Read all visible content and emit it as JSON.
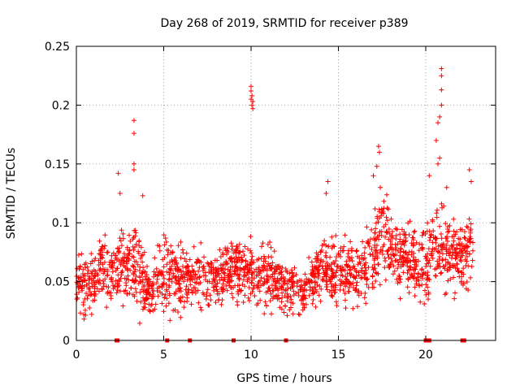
{
  "chart_data": {
    "type": "scatter",
    "title": "Day 268 of 2019, SRMTID for receiver p389",
    "xlabel": "GPS time / hours",
    "ylabel": "SRMTID / TECUs",
    "xlim": [
      0,
      24
    ],
    "ylim": [
      0,
      0.25
    ],
    "xticks": [
      0,
      5,
      10,
      15,
      20
    ],
    "yticks": [
      0,
      0.05,
      0.1,
      0.15,
      0.2,
      0.25
    ],
    "grid": true,
    "marker": "+",
    "color": "#ff0000",
    "density_envelope": [
      {
        "x": 0.0,
        "center": 0.052,
        "spread": 0.015
      },
      {
        "x": 0.5,
        "center": 0.045,
        "spread": 0.016
      },
      {
        "x": 1.0,
        "center": 0.05,
        "spread": 0.016
      },
      {
        "x": 1.5,
        "center": 0.06,
        "spread": 0.02
      },
      {
        "x": 2.0,
        "center": 0.055,
        "spread": 0.018
      },
      {
        "x": 2.5,
        "center": 0.065,
        "spread": 0.022
      },
      {
        "x": 3.0,
        "center": 0.065,
        "spread": 0.02
      },
      {
        "x": 3.5,
        "center": 0.065,
        "spread": 0.025
      },
      {
        "x": 4.0,
        "center": 0.045,
        "spread": 0.014
      },
      {
        "x": 4.5,
        "center": 0.045,
        "spread": 0.016
      },
      {
        "x": 5.0,
        "center": 0.055,
        "spread": 0.02
      },
      {
        "x": 6.0,
        "center": 0.055,
        "spread": 0.02
      },
      {
        "x": 7.0,
        "center": 0.055,
        "spread": 0.018
      },
      {
        "x": 8.0,
        "center": 0.05,
        "spread": 0.016
      },
      {
        "x": 9.0,
        "center": 0.06,
        "spread": 0.018
      },
      {
        "x": 10.0,
        "center": 0.055,
        "spread": 0.018
      },
      {
        "x": 11.0,
        "center": 0.055,
        "spread": 0.02
      },
      {
        "x": 12.0,
        "center": 0.045,
        "spread": 0.014
      },
      {
        "x": 13.0,
        "center": 0.04,
        "spread": 0.012
      },
      {
        "x": 14.0,
        "center": 0.06,
        "spread": 0.02
      },
      {
        "x": 15.0,
        "center": 0.06,
        "spread": 0.02
      },
      {
        "x": 16.0,
        "center": 0.055,
        "spread": 0.02
      },
      {
        "x": 17.0,
        "center": 0.065,
        "spread": 0.022
      },
      {
        "x": 17.5,
        "center": 0.095,
        "spread": 0.025
      },
      {
        "x": 18.0,
        "center": 0.08,
        "spread": 0.02
      },
      {
        "x": 19.0,
        "center": 0.07,
        "spread": 0.02
      },
      {
        "x": 20.0,
        "center": 0.065,
        "spread": 0.02
      },
      {
        "x": 20.5,
        "center": 0.08,
        "spread": 0.025
      },
      {
        "x": 21.0,
        "center": 0.075,
        "spread": 0.025
      },
      {
        "x": 22.0,
        "center": 0.07,
        "spread": 0.02
      },
      {
        "x": 22.7,
        "center": 0.075,
        "spread": 0.02
      }
    ],
    "peaks": [
      {
        "x": 3.3,
        "y": 0.187
      },
      {
        "x": 3.3,
        "y": 0.176
      },
      {
        "x": 3.3,
        "y": 0.15
      },
      {
        "x": 3.3,
        "y": 0.145
      },
      {
        "x": 2.4,
        "y": 0.142
      },
      {
        "x": 2.5,
        "y": 0.125
      },
      {
        "x": 3.8,
        "y": 0.123
      },
      {
        "x": 10.0,
        "y": 0.216
      },
      {
        "x": 10.0,
        "y": 0.212
      },
      {
        "x": 10.05,
        "y": 0.208
      },
      {
        "x": 10.0,
        "y": 0.205
      },
      {
        "x": 10.1,
        "y": 0.203
      },
      {
        "x": 10.05,
        "y": 0.2
      },
      {
        "x": 10.1,
        "y": 0.197
      },
      {
        "x": 14.4,
        "y": 0.135
      },
      {
        "x": 14.3,
        "y": 0.125
      },
      {
        "x": 17.3,
        "y": 0.165
      },
      {
        "x": 17.35,
        "y": 0.16
      },
      {
        "x": 17.2,
        "y": 0.148
      },
      {
        "x": 17.0,
        "y": 0.14
      },
      {
        "x": 17.4,
        "y": 0.13
      },
      {
        "x": 20.2,
        "y": 0.14
      },
      {
        "x": 20.9,
        "y": 0.231
      },
      {
        "x": 20.9,
        "y": 0.225
      },
      {
        "x": 20.9,
        "y": 0.213
      },
      {
        "x": 20.9,
        "y": 0.2
      },
      {
        "x": 20.8,
        "y": 0.19
      },
      {
        "x": 20.7,
        "y": 0.185
      },
      {
        "x": 20.6,
        "y": 0.17
      },
      {
        "x": 20.8,
        "y": 0.155
      },
      {
        "x": 20.7,
        "y": 0.15
      },
      {
        "x": 21.2,
        "y": 0.13
      },
      {
        "x": 22.5,
        "y": 0.145
      },
      {
        "x": 22.6,
        "y": 0.135
      }
    ],
    "gap_markers_x": [
      2.3,
      2.35,
      5.2,
      6.5,
      9.0,
      12.0,
      20.0,
      20.1,
      20.2,
      22.1,
      22.15,
      22.2
    ],
    "gap_markers_y": 0
  }
}
